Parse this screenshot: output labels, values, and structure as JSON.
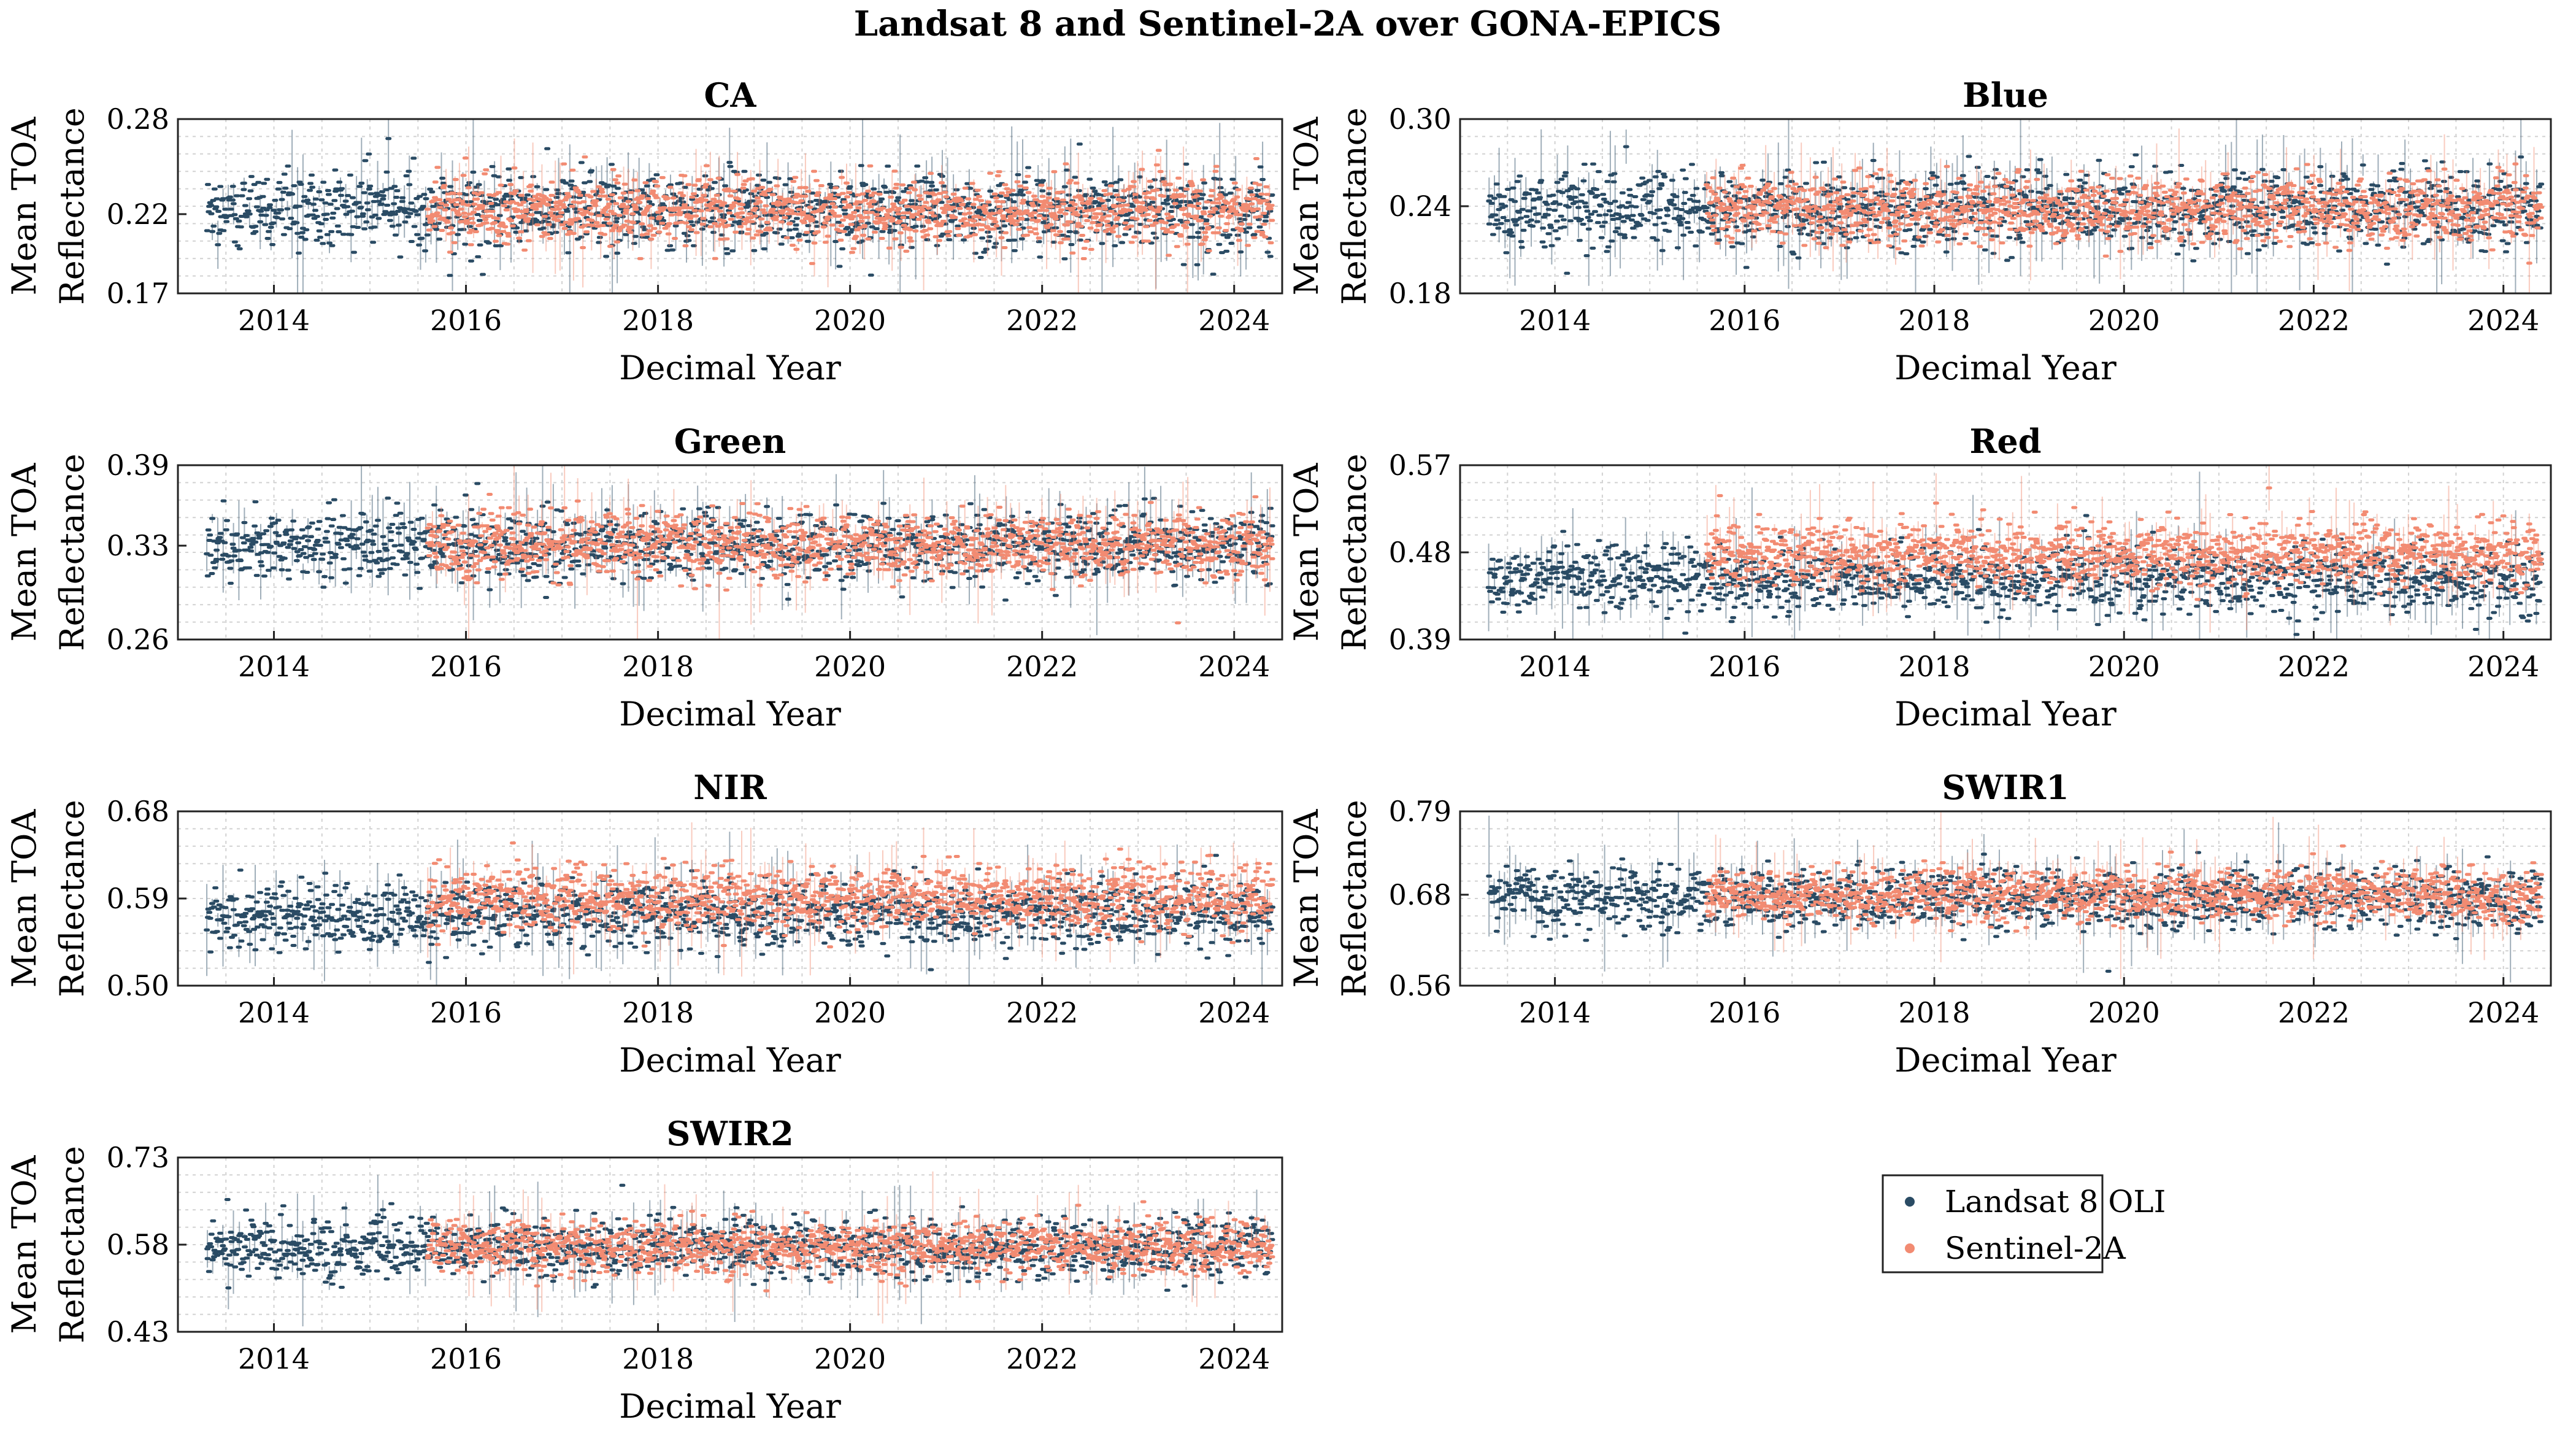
{
  "figure": {
    "title": "Landsat 8 and Sentinel-2A over GONA-EPICS"
  },
  "colors": {
    "landsat": "#2a4b64",
    "sentinel": "#f28b72",
    "grid": "#d2d2d2",
    "axis": "#222222"
  },
  "legend": {
    "placement": "lower-right",
    "items": [
      {
        "label": "Landsat 8 OLI",
        "color": "#2a4b64",
        "marker": "dot"
      },
      {
        "label": "Sentinel-2A",
        "color": "#f28b72",
        "marker": "dot"
      }
    ]
  },
  "chart_data": [
    {
      "type": "scatter",
      "title": "CA",
      "xlabel": "Decimal Year",
      "ylabel": "Mean TOA Reflectance",
      "xlim": [
        2013.0,
        2024.5
      ],
      "ylim": [
        0.17,
        0.28
      ],
      "xticks": [
        2014,
        2016,
        2018,
        2020,
        2022,
        2024
      ],
      "yticks": [
        "0.17",
        "0.22",
        "0.28"
      ],
      "grid": true,
      "series": [
        {
          "name": "Landsat 8 OLI",
          "x_start": 2013.3,
          "x_end": 2024.4,
          "mean": 0.222,
          "spread": 0.012
        },
        {
          "name": "Sentinel-2A",
          "x_start": 2015.6,
          "x_end": 2024.4,
          "mean": 0.222,
          "spread": 0.01
        }
      ]
    },
    {
      "type": "scatter",
      "title": "Blue",
      "xlabel": "Decimal Year",
      "ylabel": "Mean TOA Reflectance",
      "xlim": [
        2013.0,
        2024.5
      ],
      "ylim": [
        0.18,
        0.3
      ],
      "xticks": [
        2014,
        2016,
        2018,
        2020,
        2022,
        2024
      ],
      "yticks": [
        "0.18",
        "0.24",
        "0.30"
      ],
      "grid": true,
      "series": [
        {
          "name": "Landsat 8 OLI",
          "x_start": 2013.3,
          "x_end": 2024.4,
          "mean": 0.238,
          "spread": 0.013
        },
        {
          "name": "Sentinel-2A",
          "x_start": 2015.6,
          "x_end": 2024.4,
          "mean": 0.238,
          "spread": 0.011
        }
      ]
    },
    {
      "type": "scatter",
      "title": "Green",
      "xlabel": "Decimal Year",
      "ylabel": "Mean TOA Reflectance",
      "xlim": [
        2013.0,
        2024.5
      ],
      "ylim": [
        0.26,
        0.39
      ],
      "xticks": [
        2014,
        2016,
        2018,
        2020,
        2022,
        2024
      ],
      "yticks": [
        "0.26",
        "0.33",
        "0.39"
      ],
      "grid": true,
      "series": [
        {
          "name": "Landsat 8 OLI",
          "x_start": 2013.3,
          "x_end": 2024.4,
          "mean": 0.33,
          "spread": 0.013
        },
        {
          "name": "Sentinel-2A",
          "x_start": 2015.6,
          "x_end": 2024.4,
          "mean": 0.33,
          "spread": 0.012
        }
      ]
    },
    {
      "type": "scatter",
      "title": "Red",
      "xlabel": "Decimal Year",
      "ylabel": "Mean TOA Reflectance",
      "xlim": [
        2013.0,
        2024.5
      ],
      "ylim": [
        0.39,
        0.57
      ],
      "xticks": [
        2014,
        2016,
        2018,
        2020,
        2022,
        2024
      ],
      "yticks": [
        "0.39",
        "0.48",
        "0.57"
      ],
      "grid": true,
      "series": [
        {
          "name": "Landsat 8 OLI",
          "x_start": 2013.3,
          "x_end": 2024.4,
          "mean": 0.453,
          "spread": 0.017
        },
        {
          "name": "Sentinel-2A",
          "x_start": 2015.6,
          "x_end": 2024.4,
          "mean": 0.478,
          "spread": 0.016
        }
      ]
    },
    {
      "type": "scatter",
      "title": "NIR",
      "xlabel": "Decimal Year",
      "ylabel": "Mean TOA Reflectance",
      "xlim": [
        2013.0,
        2024.5
      ],
      "ylim": [
        0.5,
        0.68
      ],
      "xticks": [
        2014,
        2016,
        2018,
        2020,
        2022,
        2024
      ],
      "yticks": [
        "0.50",
        "0.59",
        "0.68"
      ],
      "grid": true,
      "series": [
        {
          "name": "Landsat 8 OLI",
          "x_start": 2013.3,
          "x_end": 2024.4,
          "mean": 0.574,
          "spread": 0.017
        },
        {
          "name": "Sentinel-2A",
          "x_start": 2015.6,
          "x_end": 2024.4,
          "mean": 0.59,
          "spread": 0.016
        }
      ]
    },
    {
      "type": "scatter",
      "title": "SWIR1",
      "xlabel": "Decimal Year",
      "ylabel": "Mean TOA Reflectance",
      "xlim": [
        2013.0,
        2024.5
      ],
      "ylim": [
        0.56,
        0.79
      ],
      "xticks": [
        2014,
        2016,
        2018,
        2020,
        2022,
        2024
      ],
      "yticks": [
        "0.56",
        "0.68",
        "0.79"
      ],
      "grid": true,
      "series": [
        {
          "name": "Landsat 8 OLI",
          "x_start": 2013.3,
          "x_end": 2024.4,
          "mean": 0.675,
          "spread": 0.02
        },
        {
          "name": "Sentinel-2A",
          "x_start": 2015.6,
          "x_end": 2024.4,
          "mean": 0.68,
          "spread": 0.017
        }
      ]
    },
    {
      "type": "scatter",
      "title": "SWIR2",
      "xlabel": "Decimal Year",
      "ylabel": "Mean TOA Reflectance",
      "xlim": [
        2013.0,
        2024.5
      ],
      "ylim": [
        0.43,
        0.73
      ],
      "xticks": [
        2014,
        2016,
        2018,
        2020,
        2022,
        2024
      ],
      "yticks": [
        "0.43",
        "0.58",
        "0.73"
      ],
      "grid": true,
      "series": [
        {
          "name": "Landsat 8 OLI",
          "x_start": 2013.3,
          "x_end": 2024.4,
          "mean": 0.575,
          "spread": 0.025
        },
        {
          "name": "Sentinel-2A",
          "x_start": 2015.6,
          "x_end": 2024.4,
          "mean": 0.575,
          "spread": 0.022
        }
      ]
    }
  ]
}
